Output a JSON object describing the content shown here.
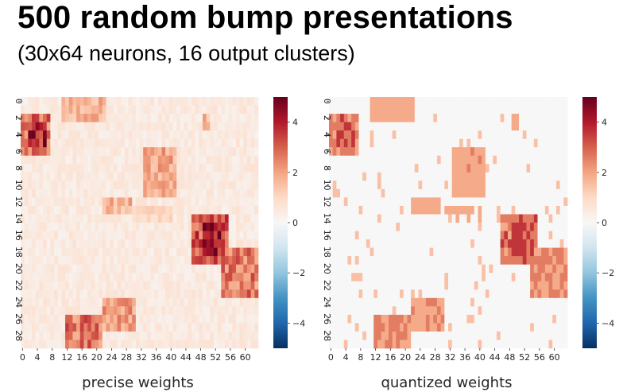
{
  "page": {
    "title": "500 random bump presentations",
    "subtitle": "(30x64 neurons, 16 output clusters)"
  },
  "colors": {
    "cmap": "RdBu_r",
    "neg": "#053061",
    "zero": "#f7f7f7",
    "pos": "#67001f"
  },
  "chart_data": [
    {
      "type": "heatmap",
      "title": "",
      "xlabel": "precise weights",
      "ylabel": "",
      "rows": 30,
      "cols": 64,
      "x_ticks": [
        0,
        4,
        8,
        12,
        16,
        20,
        24,
        28,
        32,
        36,
        40,
        44,
        48,
        52,
        56,
        60
      ],
      "y_ticks": [
        0,
        2,
        4,
        6,
        8,
        10,
        12,
        14,
        16,
        18,
        20,
        22,
        24,
        26,
        28
      ],
      "vmin": -5,
      "vmax": 5,
      "colorbar_ticks": [
        4,
        2,
        0,
        -2,
        -4
      ],
      "colorbar_labels": [
        "4",
        "2",
        "0",
        "−2",
        "−4"
      ],
      "quantized": false,
      "blobs": [
        {
          "r0": 0,
          "r1": 3,
          "c0": 11,
          "c1": 23,
          "value": 2.0
        },
        {
          "r0": 2,
          "r1": 7,
          "c0": 0,
          "c1": 8,
          "value": 3.2
        },
        {
          "r0": 3,
          "r1": 6,
          "c0": 2,
          "c1": 7,
          "value": 4.5
        },
        {
          "r0": 6,
          "r1": 12,
          "c0": 33,
          "c1": 42,
          "value": 2.2
        },
        {
          "r0": 12,
          "r1": 14,
          "c0": 22,
          "c1": 30,
          "value": 2.0
        },
        {
          "r0": 13,
          "r1": 15,
          "c0": 30,
          "c1": 41,
          "value": 1.2
        },
        {
          "r0": 14,
          "r1": 20,
          "c0": 46,
          "c1": 56,
          "value": 3.6
        },
        {
          "r0": 15,
          "r1": 19,
          "c0": 49,
          "c1": 55,
          "value": 4.5
        },
        {
          "r0": 18,
          "r1": 24,
          "c0": 54,
          "c1": 64,
          "value": 3.0
        },
        {
          "r0": 24,
          "r1": 28,
          "c0": 22,
          "c1": 31,
          "value": 2.4
        },
        {
          "r0": 26,
          "r1": 30,
          "c0": 12,
          "c1": 22,
          "value": 3.2
        },
        {
          "r0": 2,
          "r1": 4,
          "c0": 49,
          "c1": 51,
          "value": 2.0
        }
      ]
    },
    {
      "type": "heatmap",
      "title": "",
      "xlabel": "quantized weights",
      "ylabel": "",
      "rows": 30,
      "cols": 64,
      "x_ticks": [
        0,
        4,
        8,
        12,
        16,
        20,
        24,
        28,
        32,
        36,
        40,
        44,
        48,
        52,
        56,
        60
      ],
      "y_ticks": [
        0,
        2,
        4,
        6,
        8,
        10,
        12,
        14,
        16,
        18,
        20,
        22,
        24,
        26,
        28
      ],
      "vmin": -5,
      "vmax": 5,
      "colorbar_ticks": [
        4,
        2,
        0,
        -2,
        -4
      ],
      "colorbar_labels": [
        "4",
        "2",
        "0",
        "−2",
        "−4"
      ],
      "quantized": true,
      "blobs": [
        {
          "r0": 0,
          "r1": 3,
          "c0": 11,
          "c1": 23,
          "value": 2.0
        },
        {
          "r0": 2,
          "r1": 7,
          "c0": 0,
          "c1": 8,
          "value": 3.2
        },
        {
          "r0": 3,
          "r1": 6,
          "c0": 2,
          "c1": 7,
          "value": 4.5
        },
        {
          "r0": 6,
          "r1": 12,
          "c0": 33,
          "c1": 42,
          "value": 2.2
        },
        {
          "r0": 12,
          "r1": 14,
          "c0": 22,
          "c1": 30,
          "value": 2.0
        },
        {
          "r0": 13,
          "r1": 15,
          "c0": 30,
          "c1": 41,
          "value": 1.2
        },
        {
          "r0": 14,
          "r1": 20,
          "c0": 46,
          "c1": 56,
          "value": 3.6
        },
        {
          "r0": 15,
          "r1": 19,
          "c0": 49,
          "c1": 55,
          "value": 4.5
        },
        {
          "r0": 18,
          "r1": 24,
          "c0": 54,
          "c1": 64,
          "value": 3.0
        },
        {
          "r0": 24,
          "r1": 28,
          "c0": 22,
          "c1": 31,
          "value": 2.4
        },
        {
          "r0": 26,
          "r1": 30,
          "c0": 12,
          "c1": 22,
          "value": 3.2
        },
        {
          "r0": 2,
          "r1": 4,
          "c0": 49,
          "c1": 51,
          "value": 2.0
        }
      ]
    }
  ]
}
